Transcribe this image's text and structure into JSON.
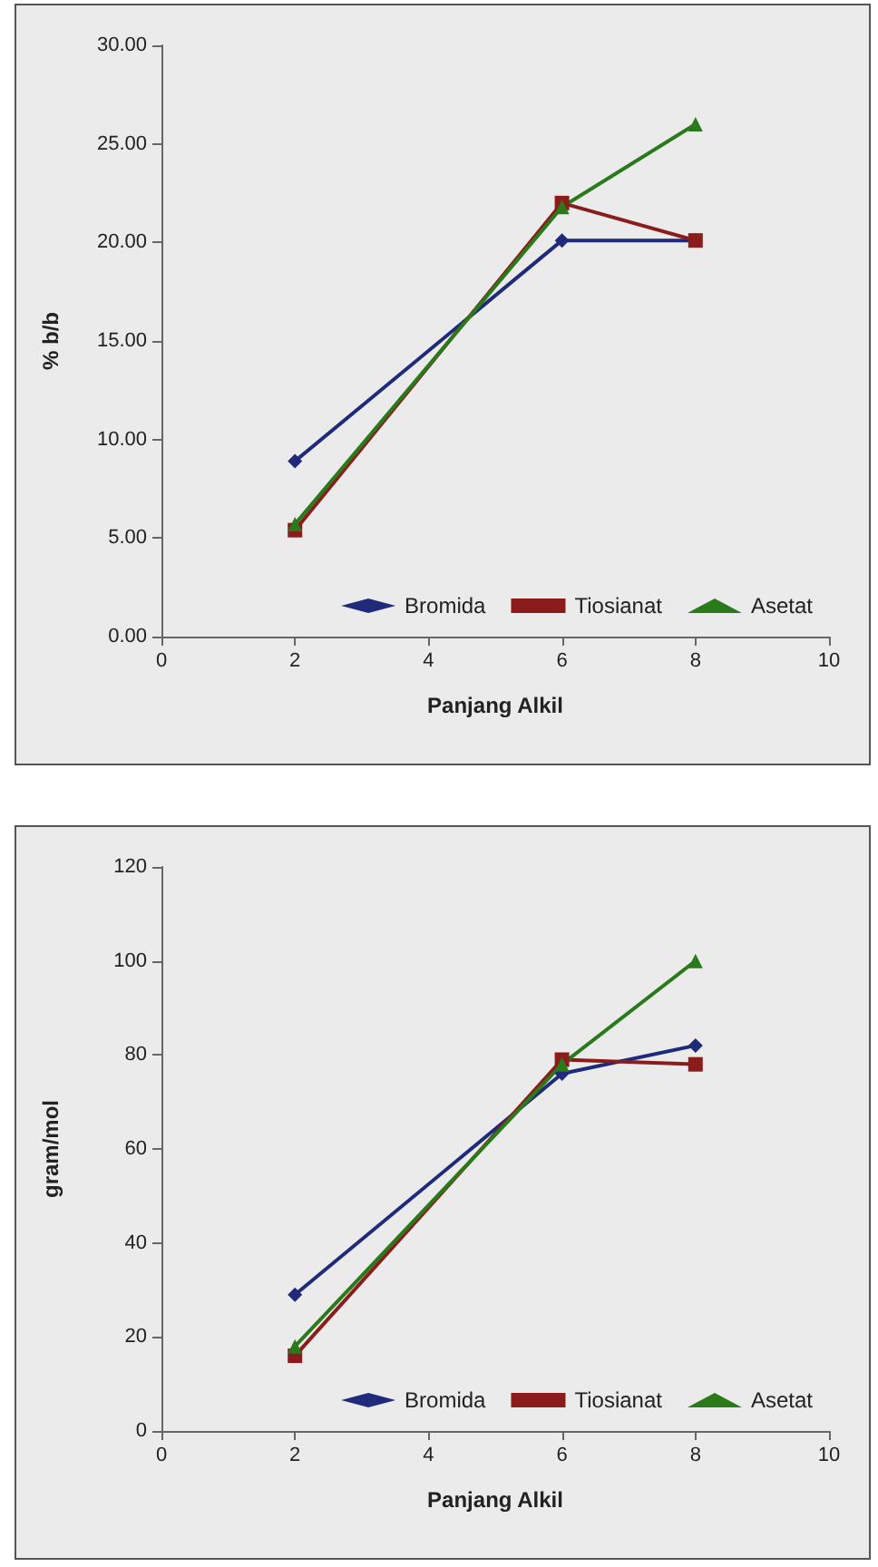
{
  "chart_data": [
    {
      "type": "line",
      "xlabel": "Panjang Alkil",
      "ylabel": "% b/b",
      "x": [
        2,
        6,
        8
      ],
      "series": [
        {
          "name": "Bromida",
          "color": "#1f2a7a",
          "marker": "diamond",
          "values": [
            8.9,
            20.1,
            20.1
          ]
        },
        {
          "name": "Tiosianat",
          "color": "#8b1c1c",
          "marker": "square",
          "values": [
            5.4,
            22.0,
            20.1
          ]
        },
        {
          "name": "Asetat",
          "color": "#2a7a1c",
          "marker": "triangle",
          "values": [
            5.7,
            21.8,
            26.0
          ]
        }
      ],
      "xlim": [
        0,
        10
      ],
      "xticks": [
        0,
        2,
        4,
        6,
        8,
        10
      ],
      "ylim": [
        0,
        30
      ],
      "yticks": [
        {
          "value": 0,
          "label": "0.00"
        },
        {
          "value": 5,
          "label": "5.00"
        },
        {
          "value": 10,
          "label": "10.00"
        },
        {
          "value": 15,
          "label": "15.00"
        },
        {
          "value": 20,
          "label": "20.00"
        },
        {
          "value": 25,
          "label": "25.00"
        },
        {
          "value": 30,
          "label": "30.00"
        }
      ],
      "grid": false,
      "legend": "bottom right",
      "line_style": "solid"
    },
    {
      "type": "line",
      "xlabel": "Panjang Alkil",
      "ylabel": "gram/mol",
      "x": [
        2,
        6,
        8
      ],
      "series": [
        {
          "name": "Bromida",
          "color": "#1f2a7a",
          "marker": "diamond",
          "values": [
            29,
            76,
            82
          ]
        },
        {
          "name": "Tiosianat",
          "color": "#8b1c1c",
          "marker": "square",
          "values": [
            16,
            79,
            78
          ]
        },
        {
          "name": "Asetat",
          "color": "#2a7a1c",
          "marker": "triangle",
          "values": [
            18,
            78,
            100
          ]
        }
      ],
      "xlim": [
        0,
        10
      ],
      "xticks": [
        0,
        2,
        4,
        6,
        8,
        10
      ],
      "ylim": [
        0,
        120
      ],
      "yticks": [
        0,
        20,
        40,
        60,
        80,
        100,
        120
      ],
      "grid": false,
      "legend": "bottom right",
      "line_style": "solid"
    }
  ]
}
